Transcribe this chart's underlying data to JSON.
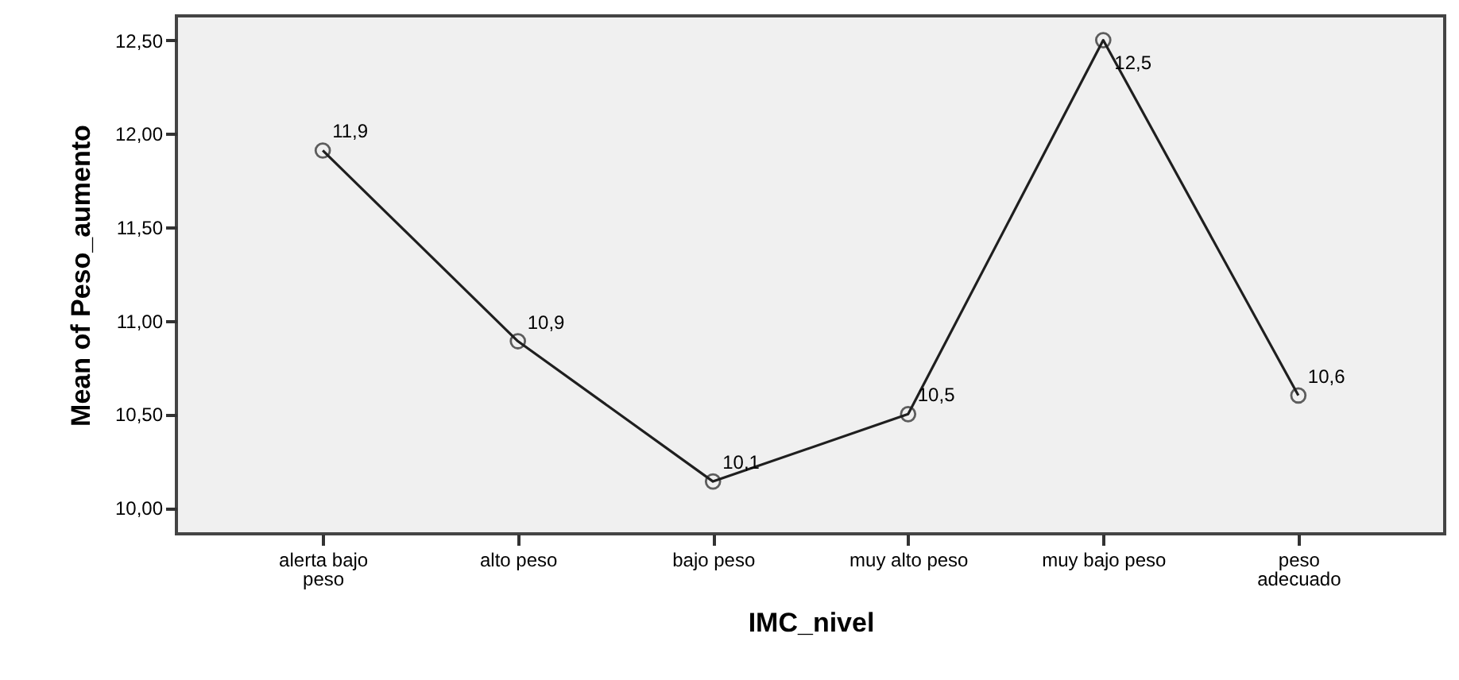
{
  "chart_data": {
    "type": "line",
    "xlabel": "IMC_nivel",
    "ylabel": "Mean of Peso_aumento",
    "categories": [
      "alerta bajo peso",
      "alto peso",
      "bajo peso",
      "muy alto peso",
      "muy bajo peso",
      "peso adecuado"
    ],
    "series": [
      {
        "color": "#1f1f1f",
        "values": [
          11.91,
          10.89,
          10.14,
          10.5,
          12.5,
          10.6
        ],
        "value_labels": [
          "11,9",
          "10,9",
          "10,1",
          "10,5",
          "12,5",
          "10,6"
        ]
      }
    ],
    "ylim": [
      9.86,
      12.63
    ],
    "yticks": [
      {
        "value": 10,
        "label": "10,00"
      },
      {
        "value": 10.5,
        "label": "10,50"
      },
      {
        "value": 11,
        "label": "11,00"
      },
      {
        "value": 11.5,
        "label": "11,50"
      },
      {
        "value": 12,
        "label": "12,00"
      },
      {
        "value": 12.5,
        "label": "12,50"
      }
    ],
    "marker": "circle",
    "line_style": "solid",
    "grid": false
  }
}
